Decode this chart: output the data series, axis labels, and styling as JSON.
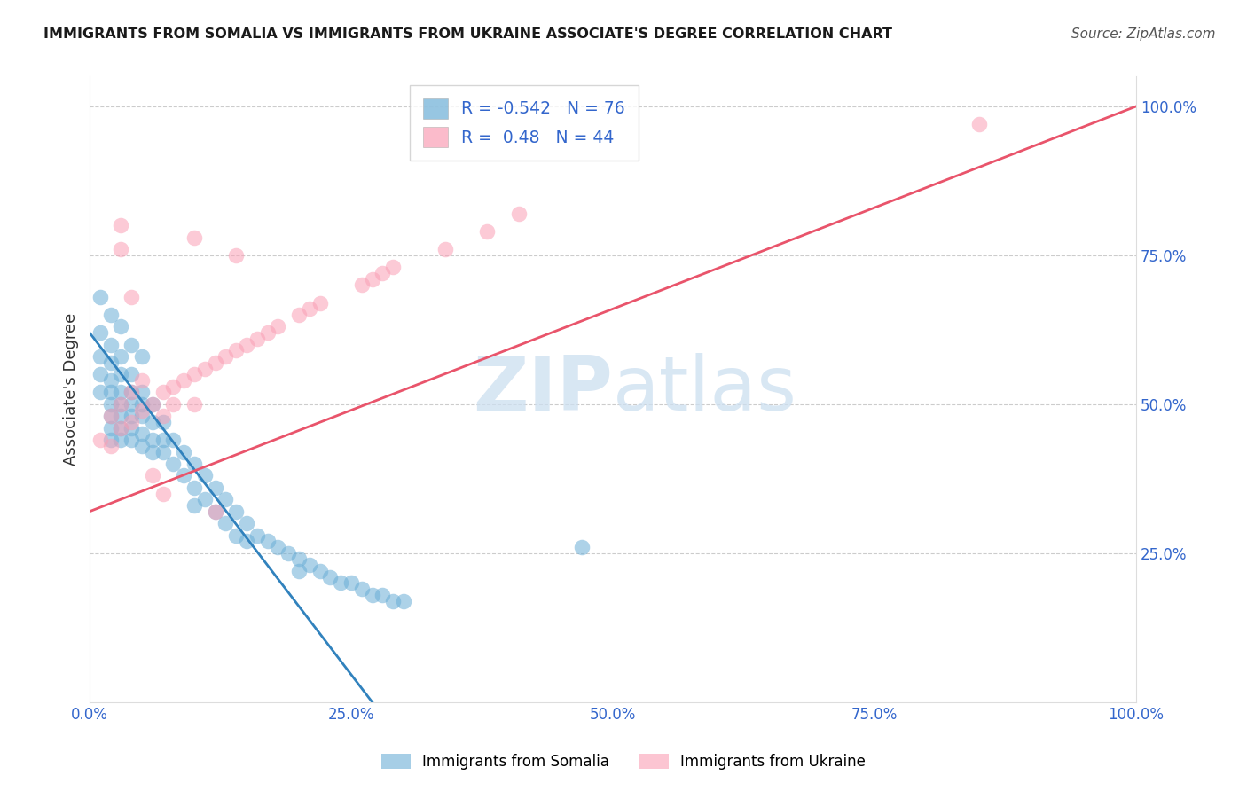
{
  "title": "IMMIGRANTS FROM SOMALIA VS IMMIGRANTS FROM UKRAINE ASSOCIATE'S DEGREE CORRELATION CHART",
  "source": "Source: ZipAtlas.com",
  "ylabel": "Associate's Degree",
  "xlim": [
    0,
    1.0
  ],
  "ylim": [
    0,
    1.05
  ],
  "x_tick_labels": [
    "0.0%",
    "25.0%",
    "50.0%",
    "75.0%",
    "100.0%"
  ],
  "x_tick_vals": [
    0.0,
    0.25,
    0.5,
    0.75,
    1.0
  ],
  "y_tick_labels": [
    "25.0%",
    "50.0%",
    "75.0%",
    "100.0%"
  ],
  "y_tick_vals": [
    0.25,
    0.5,
    0.75,
    1.0
  ],
  "somalia_color": "#6baed6",
  "ukraine_color": "#fa9fb5",
  "somalia_R": -0.542,
  "somalia_N": 76,
  "ukraine_R": 0.48,
  "ukraine_N": 44,
  "somalia_line_color": "#3182bd",
  "ukraine_line_color": "#e9546b",
  "legend_somalia": "Immigrants from Somalia",
  "legend_ukraine": "Immigrants from Ukraine",
  "somalia_line_x0": 0.0,
  "somalia_line_y0": 0.62,
  "somalia_line_x1": 0.27,
  "somalia_line_y1": 0.0,
  "ukraine_line_x0": 0.0,
  "ukraine_line_y0": 0.32,
  "ukraine_line_x1": 1.0,
  "ukraine_line_y1": 1.0,
  "somalia_scatter_x": [
    0.01,
    0.01,
    0.01,
    0.01,
    0.02,
    0.02,
    0.02,
    0.02,
    0.02,
    0.02,
    0.02,
    0.02,
    0.03,
    0.03,
    0.03,
    0.03,
    0.03,
    0.03,
    0.03,
    0.04,
    0.04,
    0.04,
    0.04,
    0.04,
    0.04,
    0.05,
    0.05,
    0.05,
    0.05,
    0.05,
    0.06,
    0.06,
    0.06,
    0.06,
    0.07,
    0.07,
    0.07,
    0.08,
    0.08,
    0.09,
    0.09,
    0.1,
    0.1,
    0.1,
    0.11,
    0.11,
    0.12,
    0.12,
    0.13,
    0.13,
    0.14,
    0.14,
    0.15,
    0.15,
    0.16,
    0.17,
    0.18,
    0.19,
    0.2,
    0.2,
    0.21,
    0.22,
    0.23,
    0.24,
    0.25,
    0.26,
    0.27,
    0.28,
    0.29,
    0.3,
    0.01,
    0.02,
    0.03,
    0.04,
    0.05,
    0.47
  ],
  "somalia_scatter_y": [
    0.62,
    0.58,
    0.55,
    0.52,
    0.6,
    0.57,
    0.54,
    0.52,
    0.5,
    0.48,
    0.46,
    0.44,
    0.58,
    0.55,
    0.52,
    0.5,
    0.48,
    0.46,
    0.44,
    0.55,
    0.52,
    0.5,
    0.48,
    0.46,
    0.44,
    0.52,
    0.5,
    0.48,
    0.45,
    0.43,
    0.5,
    0.47,
    0.44,
    0.42,
    0.47,
    0.44,
    0.42,
    0.44,
    0.4,
    0.42,
    0.38,
    0.4,
    0.36,
    0.33,
    0.38,
    0.34,
    0.36,
    0.32,
    0.34,
    0.3,
    0.32,
    0.28,
    0.3,
    0.27,
    0.28,
    0.27,
    0.26,
    0.25,
    0.24,
    0.22,
    0.23,
    0.22,
    0.21,
    0.2,
    0.2,
    0.19,
    0.18,
    0.18,
    0.17,
    0.17,
    0.68,
    0.65,
    0.63,
    0.6,
    0.58,
    0.26
  ],
  "ukraine_scatter_x": [
    0.01,
    0.02,
    0.02,
    0.03,
    0.03,
    0.04,
    0.04,
    0.05,
    0.05,
    0.06,
    0.07,
    0.07,
    0.08,
    0.08,
    0.09,
    0.1,
    0.1,
    0.11,
    0.12,
    0.13,
    0.14,
    0.15,
    0.16,
    0.17,
    0.18,
    0.2,
    0.21,
    0.22,
    0.26,
    0.27,
    0.28,
    0.29,
    0.34,
    0.38,
    0.41,
    0.85,
    0.14,
    0.1,
    0.03,
    0.03,
    0.04,
    0.06,
    0.07,
    0.12
  ],
  "ukraine_scatter_y": [
    0.44,
    0.48,
    0.43,
    0.5,
    0.46,
    0.52,
    0.47,
    0.54,
    0.49,
    0.5,
    0.52,
    0.48,
    0.53,
    0.5,
    0.54,
    0.55,
    0.5,
    0.56,
    0.57,
    0.58,
    0.59,
    0.6,
    0.61,
    0.62,
    0.63,
    0.65,
    0.66,
    0.67,
    0.7,
    0.71,
    0.72,
    0.73,
    0.76,
    0.79,
    0.82,
    0.97,
    0.75,
    0.78,
    0.8,
    0.76,
    0.68,
    0.38,
    0.35,
    0.32
  ]
}
